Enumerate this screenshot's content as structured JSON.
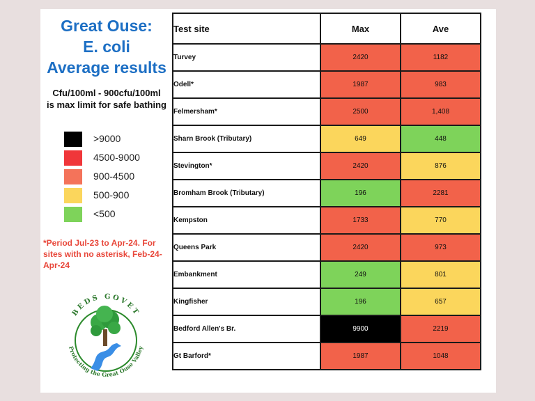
{
  "title": {
    "line1": "Great Ouse:",
    "line2": "E. coli",
    "line3": "Average results"
  },
  "limit": {
    "line1": "Cfu/100ml - 900cfu/100ml",
    "line2": "is max limit for safe bathing"
  },
  "legend": [
    {
      "label": ">9000",
      "color": "#000000"
    },
    {
      "label": "4500-9000",
      "color": "#f0363a"
    },
    {
      "label": "900-4500",
      "color": "#f4735a"
    },
    {
      "label": "500-900",
      "color": "#fbd65c"
    },
    {
      "label": "<500",
      "color": "#7ed35a"
    }
  ],
  "note": "*Period Jul-23 to Apr-24. For sites with no asterisk, Feb-24-Apr-24",
  "logo": {
    "arc_text": "BEDS GOVET",
    "bottom_text": "Protecting the Great Ouse Valley"
  },
  "table": {
    "headers": [
      "Test site",
      "Max",
      "Ave"
    ],
    "rows": [
      {
        "site": "Turvey",
        "max": "2420",
        "ave": "1182",
        "max_color": "red",
        "ave_color": "red"
      },
      {
        "site": "Odell*",
        "max": "1987",
        "ave": "983",
        "max_color": "red",
        "ave_color": "red"
      },
      {
        "site": "Felmersham*",
        "max": "2500",
        "ave": "1,408",
        "max_color": "red",
        "ave_color": "red"
      },
      {
        "site": "Sharn Brook (Tributary)",
        "max": "649",
        "ave": "448",
        "max_color": "yellow",
        "ave_color": "green"
      },
      {
        "site": "Stevington*",
        "max": "2420",
        "ave": "876",
        "max_color": "red",
        "ave_color": "yellow"
      },
      {
        "site": "Bromham Brook (Tributary)",
        "max": "196",
        "ave": "2281",
        "max_color": "green",
        "ave_color": "red"
      },
      {
        "site": "Kempston",
        "max": "1733",
        "ave": "770",
        "max_color": "red",
        "ave_color": "yellow"
      },
      {
        "site": "Queens Park",
        "max": "2420",
        "ave": "973",
        "max_color": "red",
        "ave_color": "red"
      },
      {
        "site": "Embankment",
        "max": "249",
        "ave": "801",
        "max_color": "green",
        "ave_color": "yellow"
      },
      {
        "site": "Kingfisher",
        "max": "196",
        "ave": "657",
        "max_color": "green",
        "ave_color": "yellow"
      },
      {
        "site": "Bedford Allen's Br.",
        "max": "9900",
        "ave": "2219",
        "max_color": "black",
        "ave_color": "red"
      },
      {
        "site": "Gt Barford*",
        "max": "1987",
        "ave": "1048",
        "max_color": "red",
        "ave_color": "red"
      }
    ]
  }
}
